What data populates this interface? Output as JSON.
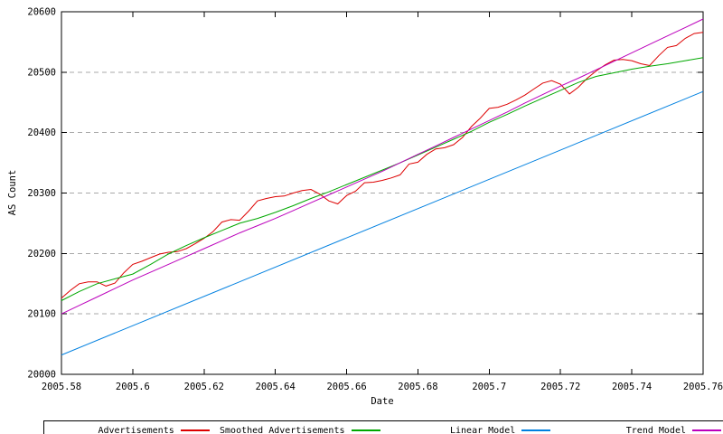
{
  "chart_data": {
    "type": "line",
    "title": "",
    "xlabel": "Date",
    "ylabel": "AS Count",
    "xlim": [
      2005.58,
      2005.76
    ],
    "ylim": [
      20000,
      20600
    ],
    "grid": "horizontal-dashed",
    "grid_y": [
      20100,
      20200,
      20300,
      20400,
      20500
    ],
    "legend_position": "bottom-outside-box",
    "x_ticks": [
      2005.58,
      2005.6,
      2005.62,
      2005.64,
      2005.66,
      2005.68,
      2005.7,
      2005.72,
      2005.74,
      2005.76
    ],
    "x_tick_labels": [
      "2005.58",
      "2005.6",
      "2005.62",
      "2005.64",
      "2005.66",
      "2005.68",
      "2005.7",
      "2005.72",
      "2005.74",
      "2005.76"
    ],
    "y_ticks": [
      20000,
      20100,
      20200,
      20300,
      20400,
      20500,
      20600
    ],
    "y_tick_labels": [
      "20000",
      "20100",
      "20200",
      "20300",
      "20400",
      "20500",
      "20600"
    ],
    "series": [
      {
        "name": "Advertisements",
        "color": "#dd0000",
        "x": [
          2005.58,
          2005.5825,
          2005.585,
          2005.5875,
          2005.59,
          2005.5925,
          2005.595,
          2005.5975,
          2005.6,
          2005.6025,
          2005.605,
          2005.6075,
          2005.61,
          2005.6125,
          2005.615,
          2005.6175,
          2005.62,
          2005.6225,
          2005.625,
          2005.6275,
          2005.63,
          2005.6325,
          2005.635,
          2005.6375,
          2005.64,
          2005.6425,
          2005.645,
          2005.6475,
          2005.65,
          2005.6525,
          2005.655,
          2005.6575,
          2005.66,
          2005.6625,
          2005.665,
          2005.6675,
          2005.67,
          2005.6725,
          2005.675,
          2005.6775,
          2005.68,
          2005.6825,
          2005.685,
          2005.6875,
          2005.69,
          2005.6925,
          2005.695,
          2005.6975,
          2005.7,
          2005.7025,
          2005.705,
          2005.7075,
          2005.71,
          2005.7125,
          2005.715,
          2005.7175,
          2005.72,
          2005.7225,
          2005.725,
          2005.7275,
          2005.73,
          2005.7325,
          2005.735,
          2005.7375,
          2005.74,
          2005.7425,
          2005.745,
          2005.7475,
          2005.75,
          2005.7525,
          2005.755,
          2005.7575,
          2005.76
        ],
        "y": [
          20126,
          20139,
          20150,
          20153,
          20153,
          20146,
          20151,
          20168,
          20182,
          20187,
          20193,
          20199,
          20202,
          20203,
          20208,
          20216,
          20225,
          20236,
          20252,
          20256,
          20255,
          20270,
          20287,
          20291,
          20294,
          20295,
          20300,
          20304,
          20306,
          20298,
          20287,
          20282,
          20296,
          20303,
          20317,
          20318,
          20321,
          20325,
          20330,
          20348,
          20351,
          20364,
          20373,
          20375,
          20380,
          20392,
          20410,
          20424,
          20440,
          20442,
          20447,
          20454,
          20462,
          20472,
          20482,
          20486,
          20480,
          20464,
          20475,
          20490,
          20502,
          20512,
          20520,
          20521,
          20519,
          20514,
          20511,
          20527,
          20541,
          20544,
          20556,
          20564,
          20566
        ]
      },
      {
        "name": "Smoothed Advertisements",
        "color": "#00a800",
        "x": [
          2005.58,
          2005.585,
          2005.59,
          2005.595,
          2005.6,
          2005.605,
          2005.61,
          2005.615,
          2005.62,
          2005.625,
          2005.63,
          2005.635,
          2005.64,
          2005.645,
          2005.65,
          2005.655,
          2005.66,
          2005.665,
          2005.67,
          2005.675,
          2005.68,
          2005.685,
          2005.69,
          2005.695,
          2005.7,
          2005.705,
          2005.71,
          2005.715,
          2005.72,
          2005.725,
          2005.73,
          2005.735,
          2005.74,
          2005.745,
          2005.75,
          2005.755,
          2005.76
        ],
        "y": [
          20122,
          20137,
          20150,
          20158,
          20166,
          20182,
          20199,
          20213,
          20226,
          20238,
          20250,
          20258,
          20268,
          20279,
          20291,
          20302,
          20314,
          20326,
          20338,
          20350,
          20363,
          20376,
          20389,
          20402,
          20417,
          20430,
          20444,
          20457,
          20470,
          20483,
          20493,
          20499,
          20505,
          20510,
          20514,
          20519,
          20524
        ]
      },
      {
        "name": "Linear Model",
        "color": "#0080e0",
        "x": [
          2005.58,
          2005.76
        ],
        "y": [
          20032,
          20468
        ]
      },
      {
        "name": "Trend Model",
        "color": "#bc00bc",
        "x": [
          2005.58,
          2005.585,
          2005.59,
          2005.595,
          2005.6,
          2005.605,
          2005.61,
          2005.615,
          2005.62,
          2005.625,
          2005.63,
          2005.635,
          2005.64,
          2005.645,
          2005.65,
          2005.655,
          2005.66,
          2005.665,
          2005.67,
          2005.675,
          2005.68,
          2005.685,
          2005.69,
          2005.695,
          2005.7,
          2005.705,
          2005.71,
          2005.715,
          2005.72,
          2005.725,
          2005.73,
          2005.735,
          2005.74,
          2005.745,
          2005.75,
          2005.755,
          2005.76
        ],
        "y": [
          20100,
          20114,
          20128,
          20142,
          20156,
          20169,
          20182,
          20195,
          20208,
          20221,
          20234,
          20246,
          20258,
          20271,
          20284,
          20297,
          20310,
          20323,
          20336,
          20350,
          20364,
          20378,
          20392,
          20406,
          20420,
          20434,
          20449,
          20463,
          20477,
          20490,
          20504,
          20518,
          20532,
          20546,
          20560,
          20574,
          20588
        ]
      }
    ]
  }
}
